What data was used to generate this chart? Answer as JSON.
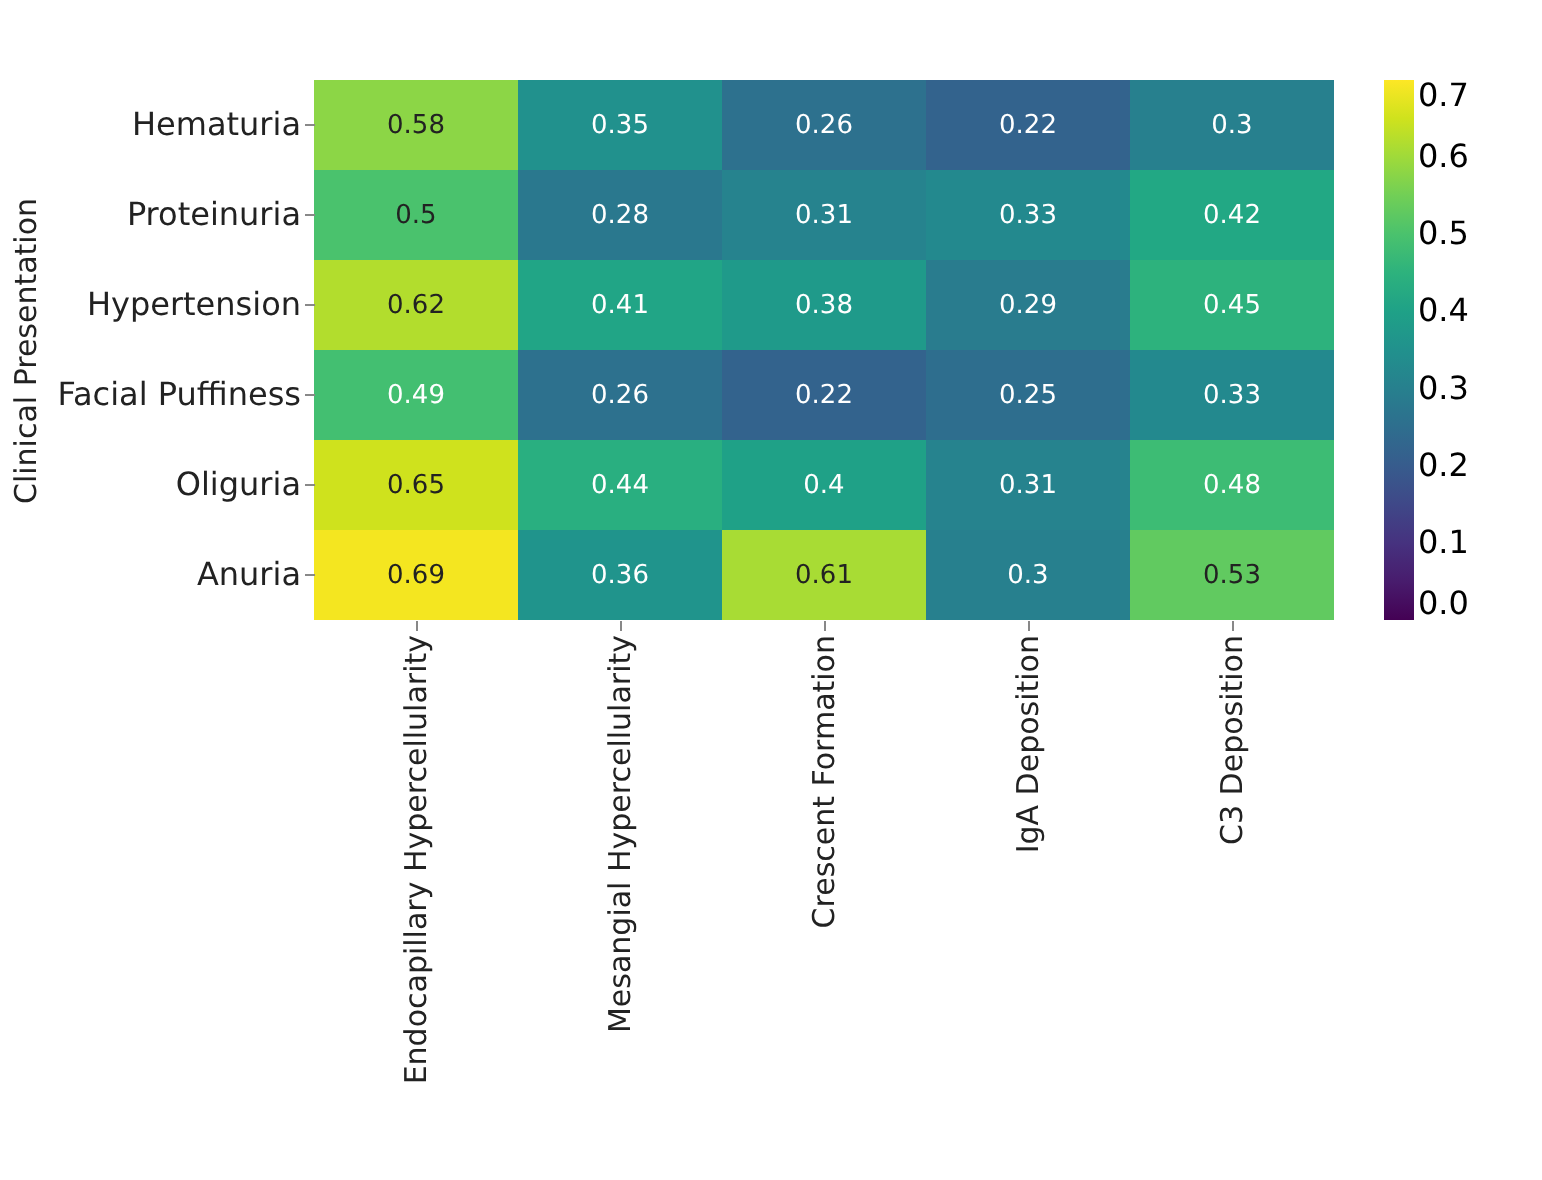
{
  "chart_data": {
    "type": "heatmap",
    "ylabel": "Clinical Presentation",
    "categories": [
      "Endocapillary Hypercellularity",
      "Mesangial Hypercellularity",
      "Crescent Formation",
      "IgA Deposition",
      "C3 Deposition"
    ],
    "y_categories": [
      "Hematuria",
      "Proteinuria",
      "Hypertension",
      "Facial Puffiness",
      "Oliguria",
      "Anuria"
    ],
    "cells": [
      [
        0.58,
        0.35,
        0.26,
        0.22,
        0.3
      ],
      [
        0.5,
        0.28,
        0.31,
        0.33,
        0.42
      ],
      [
        0.62,
        0.41,
        0.38,
        0.29,
        0.45
      ],
      [
        0.49,
        0.26,
        0.22,
        0.25,
        0.33
      ],
      [
        0.65,
        0.44,
        0.4,
        0.31,
        0.48
      ],
      [
        0.69,
        0.36,
        0.61,
        0.3,
        0.53
      ]
    ],
    "data_labels": true,
    "clim": [
      0,
      0.7
    ],
    "cticks": [
      {
        "value": 0,
        "label": "0.0"
      },
      0.1,
      0.2,
      0.3,
      0.4,
      0.5,
      0.6,
      0.7
    ]
  }
}
